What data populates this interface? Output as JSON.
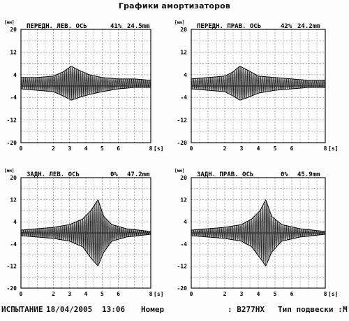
{
  "title": "Графики амортизаторов",
  "footer": {
    "test_label": "ИСПЫТАНИЕ",
    "date": "18/04/2005",
    "time": "13:06",
    "number_label": "Номер",
    "plate": ": B277HX",
    "suspension_label": "Тип подвески :",
    "suspension_value": "M"
  },
  "chart_data": [
    {
      "type": "line",
      "title": "ПЕРЕДН. ЛЕВ. ОСЬ",
      "efficiency": "41%",
      "amplitude": "24.5mm",
      "ylabel": "[мм]",
      "xlabel": "[s]",
      "ylim": [
        -20,
        20
      ],
      "xlim": [
        0,
        8
      ],
      "yticks": [
        20,
        12,
        4,
        -4,
        -12,
        -20
      ],
      "xticks": [
        0,
        2,
        3,
        4,
        5,
        6,
        8
      ],
      "grid": true,
      "envelope": {
        "x": [
          0,
          1,
          2,
          2.6,
          3.1,
          3.6,
          4.2,
          5,
          6,
          7,
          8
        ],
        "upper": [
          3,
          3,
          3.5,
          5,
          7,
          5.5,
          4,
          3,
          2.5,
          2.5,
          2
        ],
        "lower": [
          -1,
          -1.5,
          -2,
          -3.5,
          -5,
          -4,
          -3,
          -2,
          -1,
          -0.5,
          -0.5
        ]
      }
    },
    {
      "type": "line",
      "title": "ПЕРЕДН. ПРАВ. ОСЬ",
      "efficiency": "42%",
      "amplitude": "24.2mm",
      "ylabel": "[мм]",
      "xlabel": "[s]",
      "ylim": [
        -20,
        20
      ],
      "xlim": [
        0,
        8
      ],
      "yticks": [
        20,
        12,
        4,
        -4,
        -12,
        -20
      ],
      "xticks": [
        0,
        2,
        3,
        4,
        5,
        6,
        8
      ],
      "grid": true,
      "envelope": {
        "x": [
          0,
          1,
          2,
          2.5,
          2.9,
          3.4,
          4,
          5,
          6,
          7,
          8
        ],
        "upper": [
          2.5,
          3,
          3.5,
          5,
          7,
          5.5,
          3.5,
          3,
          2.5,
          2,
          2
        ],
        "lower": [
          -1,
          -1.5,
          -2,
          -3.5,
          -5,
          -4,
          -2.5,
          -1.5,
          -1,
          -0.5,
          -0.5
        ]
      }
    },
    {
      "type": "line",
      "title": "ЗАДН. ЛЕВ. ОСЬ",
      "efficiency": "0%",
      "amplitude": "47.2mm",
      "ylabel": "[мм]",
      "xlabel": "[s]",
      "ylim": [
        -20,
        20
      ],
      "xlim": [
        0,
        8
      ],
      "yticks": [
        20,
        12,
        4,
        -4,
        -12,
        -20
      ],
      "xticks": [
        0,
        2,
        3,
        4,
        5,
        6,
        8
      ],
      "grid": true,
      "envelope": {
        "x": [
          0,
          1,
          2,
          3,
          3.8,
          4.3,
          4.75,
          5.1,
          5.6,
          6.5,
          8
        ],
        "upper": [
          1,
          1.5,
          2,
          3,
          5,
          8,
          12,
          6,
          3,
          1.5,
          0.5
        ],
        "lower": [
          -1,
          -1.5,
          -2,
          -3,
          -5,
          -9,
          -12,
          -7,
          -3,
          -1.5,
          -0.5
        ]
      }
    },
    {
      "type": "line",
      "title": "ЗАДН. ПРАВ. ОСЬ",
      "efficiency": "0%",
      "amplitude": "45.9mm",
      "ylabel": "[мм]",
      "xlabel": "[s]",
      "ylim": [
        -20,
        20
      ],
      "xlim": [
        0,
        8
      ],
      "yticks": [
        20,
        12,
        4,
        -4,
        -12,
        -20
      ],
      "xticks": [
        0,
        2,
        3,
        4,
        5,
        6,
        8
      ],
      "grid": true,
      "envelope": {
        "x": [
          0,
          1,
          2,
          3,
          3.6,
          4.1,
          4.45,
          4.8,
          5.4,
          6.5,
          8
        ],
        "upper": [
          1,
          1.5,
          2,
          3,
          5,
          8,
          12,
          6,
          3,
          1.5,
          0.5
        ],
        "lower": [
          -1,
          -1.5,
          -2,
          -3,
          -5,
          -9,
          -12,
          -7,
          -3,
          -1.5,
          -0.5
        ]
      }
    }
  ]
}
